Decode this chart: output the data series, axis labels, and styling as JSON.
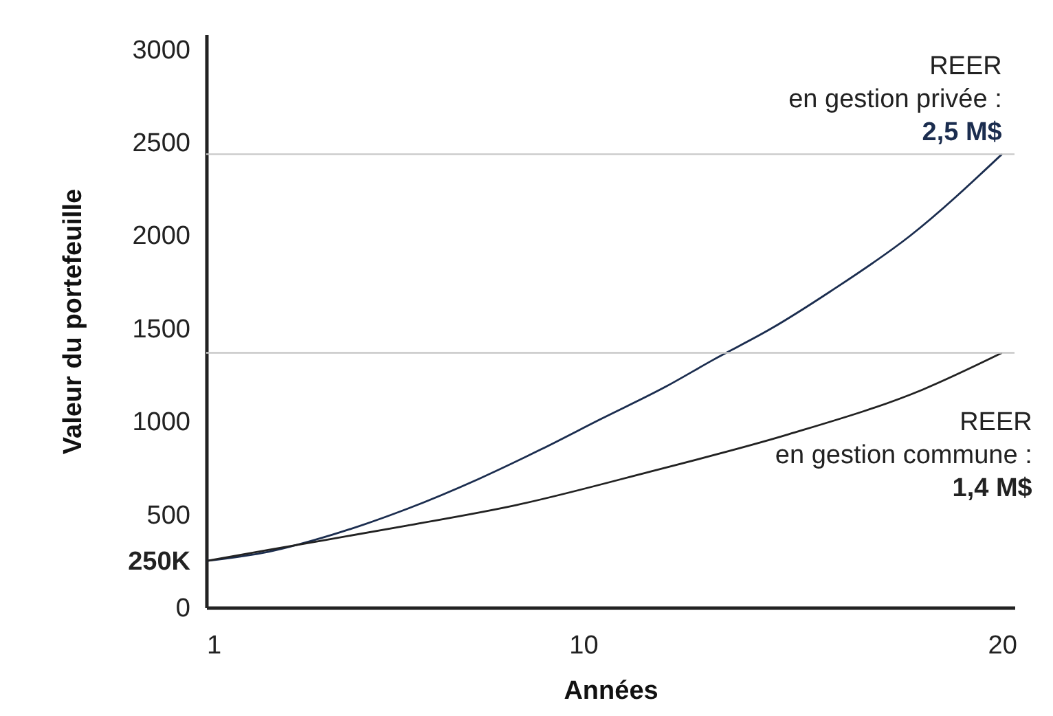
{
  "chart_data": {
    "type": "line",
    "xlabel": "Années",
    "ylabel": "Valeur du portefeuille",
    "xlim": [
      1,
      20.3
    ],
    "xticks": [
      1,
      10,
      20
    ],
    "ylim": [
      0,
      3080
    ],
    "yticks": [
      0,
      {
        "value": 250,
        "label": "250K"
      },
      500,
      1000,
      1500,
      2000,
      2500,
      3000
    ],
    "grid": false,
    "line_style": "solid",
    "marker": "none",
    "ref_lines": [
      {
        "axis": "y",
        "value": 2436,
        "color": "#c8c8c8"
      },
      {
        "axis": "y",
        "value": 1368,
        "color": "#c8c8c8"
      }
    ],
    "annotations": [
      "2,5 M$",
      "1,4 M$"
    ],
    "series": [
      {
        "name": "REER\nen gestion privée :",
        "color": "#1b2d4f",
        "x": [
          1,
          2.5,
          4,
          5.8,
          7.5,
          9,
          10.4,
          12,
          13.1,
          14.5,
          15.9,
          17.8,
          20
        ],
        "values": [
          250,
          300,
          390,
          530,
          690,
          850,
          1010,
          1190,
          1330,
          1500,
          1698,
          1996,
          2436
        ]
      },
      {
        "name": "REER\nen gestion commune :",
        "color": "#222222",
        "x": [
          1,
          2.5,
          5.8,
          8.4,
          11.6,
          14.9,
          18.1,
          20
        ],
        "values": [
          250,
          310,
          440,
          550,
          730,
          930,
          1170,
          1368
        ]
      }
    ]
  }
}
